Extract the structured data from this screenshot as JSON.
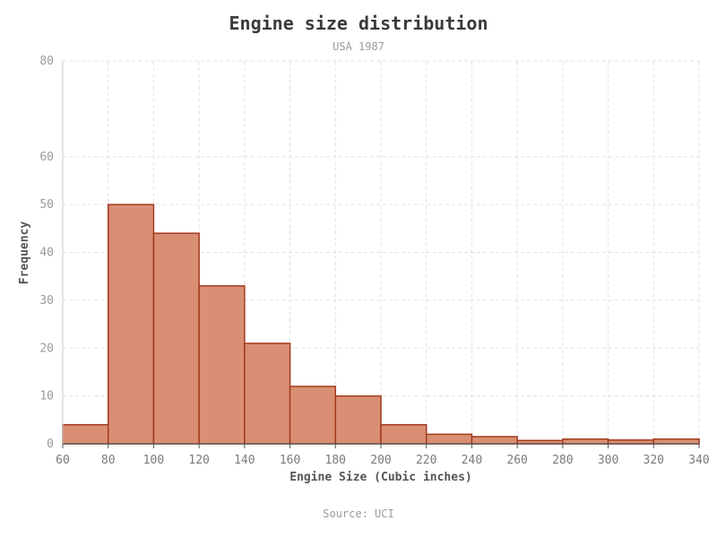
{
  "chart_data": {
    "type": "bar",
    "title": "Engine size distribution",
    "subtitle": "USA 1987",
    "source": "Source: UCI",
    "xlabel": "Engine Size (Cubic inches)",
    "ylabel": "Frequency",
    "bin_edges": [
      60,
      80,
      100,
      120,
      140,
      160,
      180,
      200,
      220,
      240,
      260,
      280,
      300,
      320,
      340
    ],
    "x_ticks": [
      "60",
      "80",
      "100",
      "120",
      "140",
      "160",
      "180",
      "200",
      "220",
      "240",
      "260",
      "280",
      "300",
      "320",
      "340"
    ],
    "values": [
      4,
      50,
      44,
      33,
      21,
      12,
      10,
      4,
      2,
      1.5,
      0.7,
      1,
      0.8,
      1
    ],
    "y_ticks": [
      0,
      10,
      20,
      30,
      40,
      50,
      60,
      80
    ],
    "ylim": [
      0,
      80
    ],
    "grid": true,
    "colors": {
      "bar_fill": "#d98f74",
      "bar_stroke": "#a33a1e",
      "grid": "#e2e2e2"
    }
  }
}
